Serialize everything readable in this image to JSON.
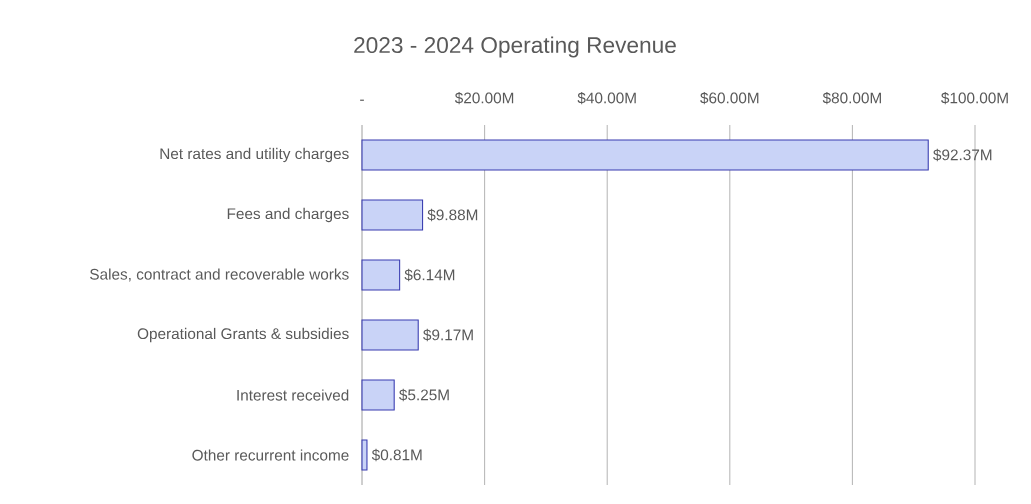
{
  "chart_data": {
    "type": "bar",
    "orientation": "horizontal",
    "title": "2023 - 2024 Operating Revenue",
    "categories": [
      "Net rates and utility charges",
      "Fees and charges",
      "Sales, contract and recoverable works",
      "Operational Grants & subsidies",
      "Interest received",
      "Other recurrent income"
    ],
    "values": [
      92.37,
      9.88,
      6.14,
      9.17,
      5.25,
      0.81
    ],
    "value_labels": [
      "$92.37M",
      "$9.88M",
      "$6.14M",
      "$9.17M",
      "$5.25M",
      "$0.81M"
    ],
    "color": "#c9d3f7",
    "xlim": [
      0,
      100
    ],
    "xticks": [
      {
        "value": 0,
        "label": "-"
      },
      {
        "value": 20,
        "label": "$20.00M"
      },
      {
        "value": 40,
        "label": "$40.00M"
      },
      {
        "value": 60,
        "label": "$60.00M"
      },
      {
        "value": 80,
        "label": "$80.00M"
      },
      {
        "value": 100,
        "label": "$100.00M"
      }
    ],
    "grid": "x"
  }
}
